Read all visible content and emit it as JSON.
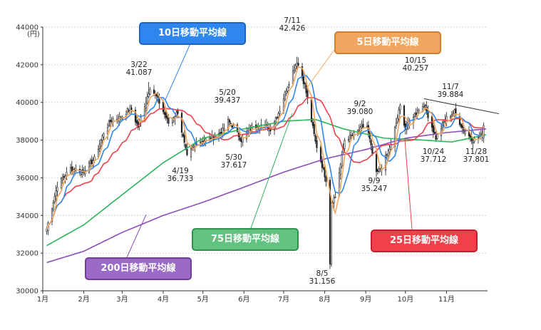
{
  "chart_data": {
    "type": "candlestick",
    "y_axis": {
      "ylim": [
        30000,
        44000
      ],
      "ticks": [
        "30000",
        "32000",
        "34000",
        "36000",
        "38000",
        "40000",
        "42000",
        "44000"
      ],
      "unit": "(円)"
    },
    "x_axis": {
      "months": [
        "1月",
        "2月",
        "3月",
        "4月",
        "5月",
        "6月",
        "7月",
        "8月",
        "9月",
        "10月",
        "11月"
      ]
    },
    "annotations": [
      {
        "date": "3/22",
        "value": "41.087"
      },
      {
        "date": "4/19",
        "value": "36.733"
      },
      {
        "date": "5/20",
        "value": "39.437"
      },
      {
        "date": "5/30",
        "value": "37.617"
      },
      {
        "date": "7/11",
        "value": "42.426"
      },
      {
        "date": "8/5",
        "value": "31.156"
      },
      {
        "date": "9/2",
        "value": "39.080"
      },
      {
        "date": "9/9",
        "value": "35.247"
      },
      {
        "date": "10/15",
        "value": "40.257"
      },
      {
        "date": "10/24",
        "value": "37.712"
      },
      {
        "date": "11/7",
        "value": "39.884"
      },
      {
        "date": "11/28",
        "value": "37.801"
      }
    ],
    "series": [
      {
        "name": "5日移動平均線",
        "color": "#f0a65e"
      },
      {
        "name": "10日移動平均線",
        "color": "#2e86ee"
      },
      {
        "name": "25日移動平均線",
        "color": "#f0404a"
      },
      {
        "name": "75日移動平均線",
        "color": "#2bb45a"
      },
      {
        "name": "200日移動平均線",
        "color": "#8b4fb8"
      }
    ],
    "close_path": [
      [
        "2024-01-04",
        33300
      ],
      [
        "2024-01-12",
        35600
      ],
      [
        "2024-01-22",
        36500
      ],
      [
        "2024-01-31",
        36300
      ],
      [
        "2024-02-09",
        37000
      ],
      [
        "2024-02-16",
        38400
      ],
      [
        "2024-02-22",
        39100
      ],
      [
        "2024-02-29",
        39200
      ],
      [
        "2024-03-07",
        39700
      ],
      [
        "2024-03-13",
        38700
      ],
      [
        "2024-03-22",
        40800
      ],
      [
        "2024-03-27",
        40300
      ],
      [
        "2024-04-05",
        38900
      ],
      [
        "2024-04-12",
        39500
      ],
      [
        "2024-04-19",
        37100
      ],
      [
        "2024-04-26",
        37900
      ],
      [
        "2024-05-08",
        38100
      ],
      [
        "2024-05-15",
        38400
      ],
      [
        "2024-05-20",
        39000
      ],
      [
        "2024-05-24",
        38700
      ],
      [
        "2024-05-30",
        38000
      ],
      [
        "2024-06-07",
        38700
      ],
      [
        "2024-06-14",
        38800
      ],
      [
        "2024-06-21",
        38600
      ],
      [
        "2024-06-28",
        39600
      ],
      [
        "2024-07-04",
        40900
      ],
      [
        "2024-07-11",
        42200
      ],
      [
        "2024-07-17",
        40900
      ],
      [
        "2024-07-25",
        37900
      ],
      [
        "2024-08-02",
        35900
      ],
      [
        "2024-08-05",
        31500
      ],
      [
        "2024-08-06",
        34700
      ],
      [
        "2024-08-09",
        35000
      ],
      [
        "2024-08-16",
        38000
      ],
      [
        "2024-08-23",
        38300
      ],
      [
        "2024-08-30",
        38700
      ],
      [
        "2024-09-02",
        38700
      ],
      [
        "2024-09-09",
        36200
      ],
      [
        "2024-09-13",
        36600
      ],
      [
        "2024-09-20",
        37700
      ],
      [
        "2024-09-27",
        39800
      ],
      [
        "2024-10-01",
        38600
      ],
      [
        "2024-10-07",
        39300
      ],
      [
        "2024-10-15",
        39900
      ],
      [
        "2024-10-24",
        38100
      ],
      [
        "2024-10-31",
        39100
      ],
      [
        "2024-11-07",
        39500
      ],
      [
        "2024-11-14",
        38500
      ],
      [
        "2024-11-21",
        38000
      ],
      [
        "2024-11-28",
        38300
      ],
      [
        "2024-11-29",
        38800
      ],
      [
        "2024-12-02",
        39300
      ]
    ],
    "ma75_path": [
      [
        "2024-01-04",
        32400
      ],
      [
        "2024-02-01",
        33500
      ],
      [
        "2024-03-01",
        35100
      ],
      [
        "2024-04-01",
        36800
      ],
      [
        "2024-05-01",
        38100
      ],
      [
        "2024-06-01",
        38600
      ],
      [
        "2024-07-01",
        39000
      ],
      [
        "2024-07-25",
        39100
      ],
      [
        "2024-08-15",
        38600
      ],
      [
        "2024-09-15",
        38100
      ],
      [
        "2024-10-15",
        38000
      ],
      [
        "2024-11-05",
        37900
      ],
      [
        "2024-12-02",
        38300
      ]
    ],
    "ma200_path": [
      [
        "2024-01-04",
        31500
      ],
      [
        "2024-02-01",
        32100
      ],
      [
        "2024-03-01",
        33100
      ],
      [
        "2024-04-01",
        34000
      ],
      [
        "2024-05-01",
        34700
      ],
      [
        "2024-06-01",
        35500
      ],
      [
        "2024-07-01",
        36300
      ],
      [
        "2024-08-01",
        37000
      ],
      [
        "2024-09-01",
        37500
      ],
      [
        "2024-10-01",
        38100
      ],
      [
        "2024-11-01",
        38400
      ],
      [
        "2024-12-02",
        38600
      ]
    ]
  }
}
